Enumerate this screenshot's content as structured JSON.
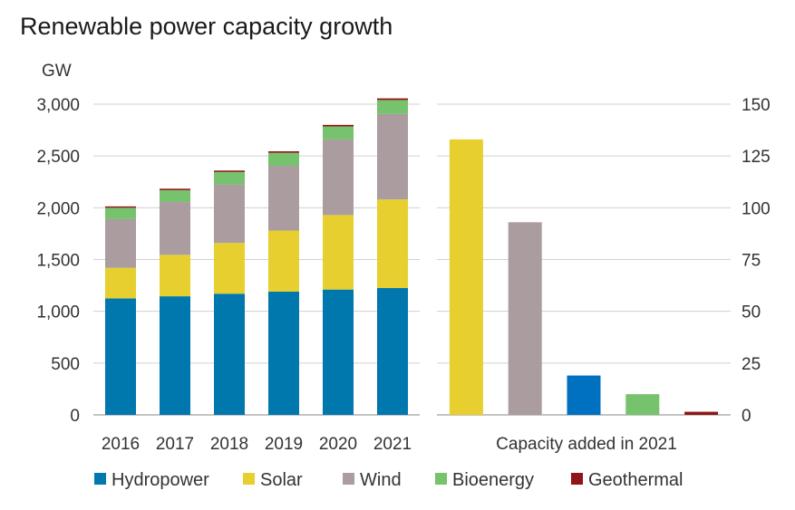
{
  "chart_data": [
    {
      "type": "bar",
      "stacked": true,
      "title": "Renewable power capacity growth",
      "ylabel": "GW",
      "categories": [
        "2016",
        "2017",
        "2018",
        "2019",
        "2020",
        "2021"
      ],
      "ylim": [
        0,
        3000
      ],
      "yticks": [
        "0",
        "500",
        "1,000",
        "1,500",
        "2,000",
        "2,500",
        "3,000"
      ],
      "grid": true,
      "series": [
        {
          "name": "Hydropower",
          "color": "#0078ad",
          "values": [
            1125,
            1145,
            1170,
            1190,
            1210,
            1225
          ]
        },
        {
          "name": "Solar",
          "color": "#e6cf2e",
          "values": [
            295,
            400,
            490,
            590,
            720,
            855
          ]
        },
        {
          "name": "Wind",
          "color": "#aa9c9f",
          "values": [
            470,
            510,
            565,
            625,
            730,
            825
          ]
        },
        {
          "name": "Bioenergy",
          "color": "#77c26d",
          "values": [
            110,
            115,
            120,
            125,
            125,
            135
          ]
        },
        {
          "name": "Geothermal",
          "color": "#8e1616",
          "values": [
            13,
            14,
            14,
            15,
            15,
            16
          ]
        }
      ]
    },
    {
      "type": "bar",
      "xlabel": "Capacity added in 2021",
      "ylim": [
        0,
        150
      ],
      "yticks": [
        "0",
        "25",
        "50",
        "75",
        "100",
        "125",
        "150"
      ],
      "grid": true,
      "categories": [
        "Solar",
        "Wind",
        "Hydropower",
        "Bioenergy",
        "Geothermal"
      ],
      "values": [
        133,
        93,
        19,
        10,
        1.5
      ],
      "colors": [
        "#e6cf2e",
        "#aa9c9f",
        "#0070c0",
        "#77c26d",
        "#8e1616"
      ]
    }
  ],
  "legend": [
    {
      "label": "Hydropower",
      "color": "#0078ad"
    },
    {
      "label": "Solar",
      "color": "#e6cf2e"
    },
    {
      "label": "Wind",
      "color": "#aa9c9f"
    },
    {
      "label": "Bioenergy",
      "color": "#77c26d"
    },
    {
      "label": "Geothermal",
      "color": "#8e1616"
    }
  ]
}
